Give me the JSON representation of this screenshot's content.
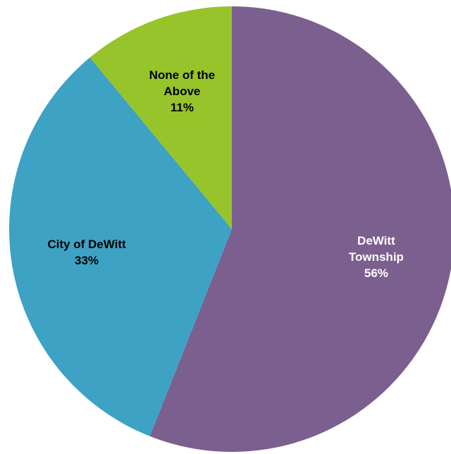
{
  "chart_data": {
    "type": "pie",
    "title": "",
    "start_angle_deg": 0,
    "direction": "clockwise",
    "slices": [
      {
        "category": "DeWitt Township",
        "label_lines": [
          "DeWitt",
          "Township",
          "56%"
        ],
        "value": 56,
        "percent_label": "56%",
        "color": "#7B5F8F",
        "label_color": "#ffffff"
      },
      {
        "category": "City of DeWitt",
        "label_lines": [
          "City of DeWitt",
          "33%"
        ],
        "value": 33,
        "percent_label": "33%",
        "color": "#3DA2C3",
        "label_color": "#000000"
      },
      {
        "category": "None of the Above",
        "label_lines": [
          "None of the",
          "Above",
          "11%"
        ],
        "value": 11,
        "percent_label": "11%",
        "color": "#97C42A",
        "label_color": "#000000"
      }
    ]
  }
}
